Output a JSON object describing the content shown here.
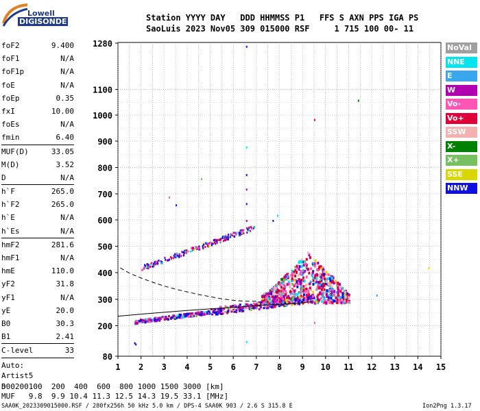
{
  "logo": {
    "line1": "Lowell",
    "line2": "DIGISONDE"
  },
  "header": {
    "line1": "Station YYYY DAY   DDD HHMMSS P1   FFS S AXN PPS IGA PS",
    "line2": "SaoLuis 2023 Nov05 309 015000 RSF     1 715 100 00- 11"
  },
  "params_group1": [
    {
      "label": "foF2",
      "value": "9.400"
    },
    {
      "label": "foF1",
      "value": "N/A"
    },
    {
      "label": "foF1p",
      "value": "N/A"
    },
    {
      "label": "foE",
      "value": "N/A"
    },
    {
      "label": "foEp",
      "value": "0.35"
    },
    {
      "label": "fxI",
      "value": "10.00"
    },
    {
      "label": "foEs",
      "value": "N/A"
    },
    {
      "label": "fmin",
      "value": "6.40"
    }
  ],
  "params_group2": [
    {
      "label": "MUF(D)",
      "value": "33.05"
    },
    {
      "label": "M(D)",
      "value": "3.52"
    },
    {
      "label": "D",
      "value": "N/A"
    }
  ],
  "params_group3": [
    {
      "label": "h`F",
      "value": "265.0"
    },
    {
      "label": "h`F2",
      "value": "265.0"
    },
    {
      "label": "h`E",
      "value": "N/A"
    },
    {
      "label": "h`Es",
      "value": "N/A"
    }
  ],
  "params_group4": [
    {
      "label": "hmF2",
      "value": "281.6"
    },
    {
      "label": "hmF1",
      "value": "N/A"
    },
    {
      "label": "hmE",
      "value": "110.0"
    },
    {
      "label": "yF2",
      "value": "31.8"
    },
    {
      "label": "yF1",
      "value": "N/A"
    },
    {
      "label": "yE",
      "value": "20.0"
    },
    {
      "label": "B0",
      "value": "30.3"
    },
    {
      "label": "B1",
      "value": "2.41"
    }
  ],
  "params_group5": [
    {
      "label": "C-level",
      "value": "33"
    }
  ],
  "auto_info": [
    "Auto:",
    "Artist5",
    "500200"
  ],
  "legend": [
    {
      "label": "NoVal",
      "color": "#a0a0a0"
    },
    {
      "label": "NNE",
      "color": "#00e5ee"
    },
    {
      "label": "E",
      "color": "#3aa6ee"
    },
    {
      "label": "W",
      "color": "#b000b0"
    },
    {
      "label": "Vo-",
      "color": "#ff55b5"
    },
    {
      "label": "Vo+",
      "color": "#e0003a"
    },
    {
      "label": "SSW",
      "color": "#f5b0b0"
    },
    {
      "label": "X-",
      "color": "#008000"
    },
    {
      "label": "X+",
      "color": "#77c060"
    },
    {
      "label": "SSE",
      "color": "#d8d800"
    },
    {
      "label": "NNW",
      "color": "#1010e0"
    }
  ],
  "footer": {
    "d_line": "D     100  200  400  600  800 1000 1500 3000 [km]",
    "muf_line": "MUF   9.8  9.9 10.4 11.3 12.5 14.3 19.5 33.1 [MHz]",
    "file_line": "SAA0K_2023309015000.RSF / 280fx256h 50 kHz 5.0 km / DPS-4 SAA0K 903 / 2.6 S 315.8 E",
    "version": "Ion2Png 1.3.17"
  },
  "chart_data": {
    "type": "scatter",
    "xlim": [
      1,
      15
    ],
    "ylim": [
      80,
      1280
    ],
    "x_ticks": [
      "1",
      "2",
      "3",
      "4",
      "5",
      "6",
      "7",
      "8",
      "9",
      "10",
      "11",
      "12",
      "13",
      "14",
      "15"
    ],
    "y_ticks": [
      "80",
      "200",
      "300",
      "400",
      "500",
      "600",
      "700",
      "800",
      "900",
      "1000",
      "1100",
      "1280"
    ],
    "y_tick_values": [
      80,
      200,
      300,
      400,
      500,
      600,
      700,
      800,
      900,
      1000,
      1100,
      1280
    ],
    "grid": true,
    "profile_solid": [
      [
        1.0,
        236
      ],
      [
        2.0,
        244
      ],
      [
        3.0,
        251
      ],
      [
        4.0,
        258
      ],
      [
        5.0,
        264
      ],
      [
        6.0,
        270
      ],
      [
        7.0,
        276
      ],
      [
        8.0,
        281
      ],
      [
        8.6,
        284
      ],
      [
        9.2,
        289
      ],
      [
        9.4,
        291
      ]
    ],
    "profile_dashed": [
      [
        1.1,
        418
      ],
      [
        1.5,
        398
      ],
      [
        2.0,
        380
      ],
      [
        2.5,
        364
      ],
      [
        3.0,
        350
      ],
      [
        3.5,
        338
      ],
      [
        4.0,
        328
      ],
      [
        4.5,
        318
      ],
      [
        5.0,
        310
      ],
      [
        5.5,
        302
      ],
      [
        6.0,
        296
      ],
      [
        6.5,
        293
      ],
      [
        7.0,
        293
      ]
    ],
    "trace_o": {
      "x_start": 1.7,
      "x_end": 9.4,
      "h_start": 215,
      "h_end": 300
    },
    "trace_x": {
      "x_start": 2.0,
      "x_end": 6.9,
      "h_start": 420,
      "h_end": 575
    },
    "spread_F": {
      "x_start": 7.2,
      "x_end": 11.0,
      "h_low": 290,
      "h_high": 480
    }
  }
}
